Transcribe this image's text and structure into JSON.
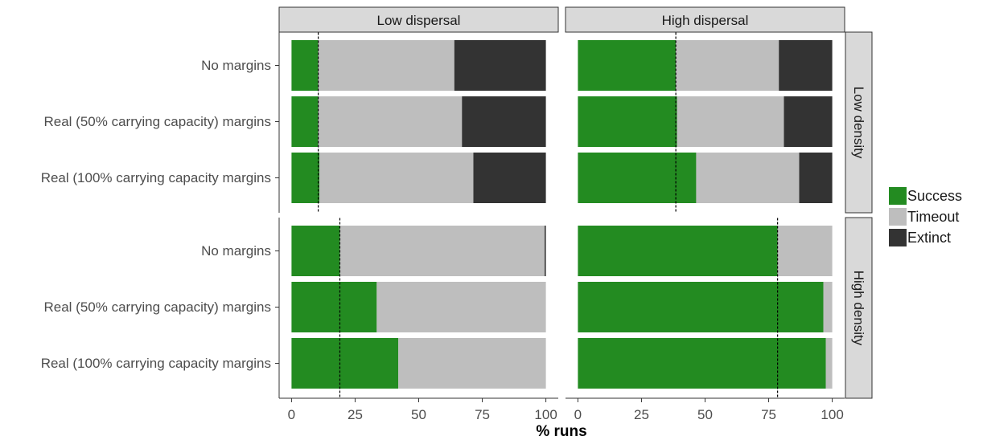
{
  "chart_data": {
    "type": "bar",
    "orientation": "horizontal",
    "stacked": true,
    "xlabel": "% runs",
    "xlim": [
      0,
      100
    ],
    "xticks": [
      "0",
      "25",
      "50",
      "75",
      "100"
    ],
    "grid": false,
    "legend_position": "right",
    "columns": [
      "Low dispersal",
      "High dispersal"
    ],
    "rows": [
      "Low density",
      "High density"
    ],
    "categories": [
      "No margins",
      "Real (50% carrying capacity) margins",
      "Real (100% carrying capacity margins"
    ],
    "series": [
      {
        "name": "Success",
        "color": "#238b21"
      },
      {
        "name": "Timeout",
        "color": "#bebebe"
      },
      {
        "name": "Extinct",
        "color": "#333333"
      }
    ],
    "panels": [
      {
        "col": 0,
        "row": 0,
        "reference_line": 10.5,
        "values": {
          "Success": [
            10.5,
            10.5,
            11
          ],
          "Timeout": [
            53.5,
            56.5,
            60.5
          ],
          "Extinct": [
            36,
            33,
            28.5
          ]
        }
      },
      {
        "col": 1,
        "row": 0,
        "reference_line": 38.5,
        "values": {
          "Success": [
            38.5,
            39,
            46.5
          ],
          "Timeout": [
            40.5,
            42,
            40.5
          ],
          "Extinct": [
            21,
            19,
            13
          ]
        }
      },
      {
        "col": 0,
        "row": 1,
        "reference_line": 19,
        "values": {
          "Success": [
            19,
            33.5,
            42
          ],
          "Timeout": [
            80.5,
            66.5,
            58
          ],
          "Extinct": [
            0.5,
            0,
            0
          ]
        }
      },
      {
        "col": 1,
        "row": 1,
        "reference_line": 78.5,
        "values": {
          "Success": [
            78.5,
            96.5,
            97.5
          ],
          "Timeout": [
            21.5,
            3.5,
            2.5
          ],
          "Extinct": [
            0,
            0,
            0
          ]
        }
      }
    ]
  }
}
